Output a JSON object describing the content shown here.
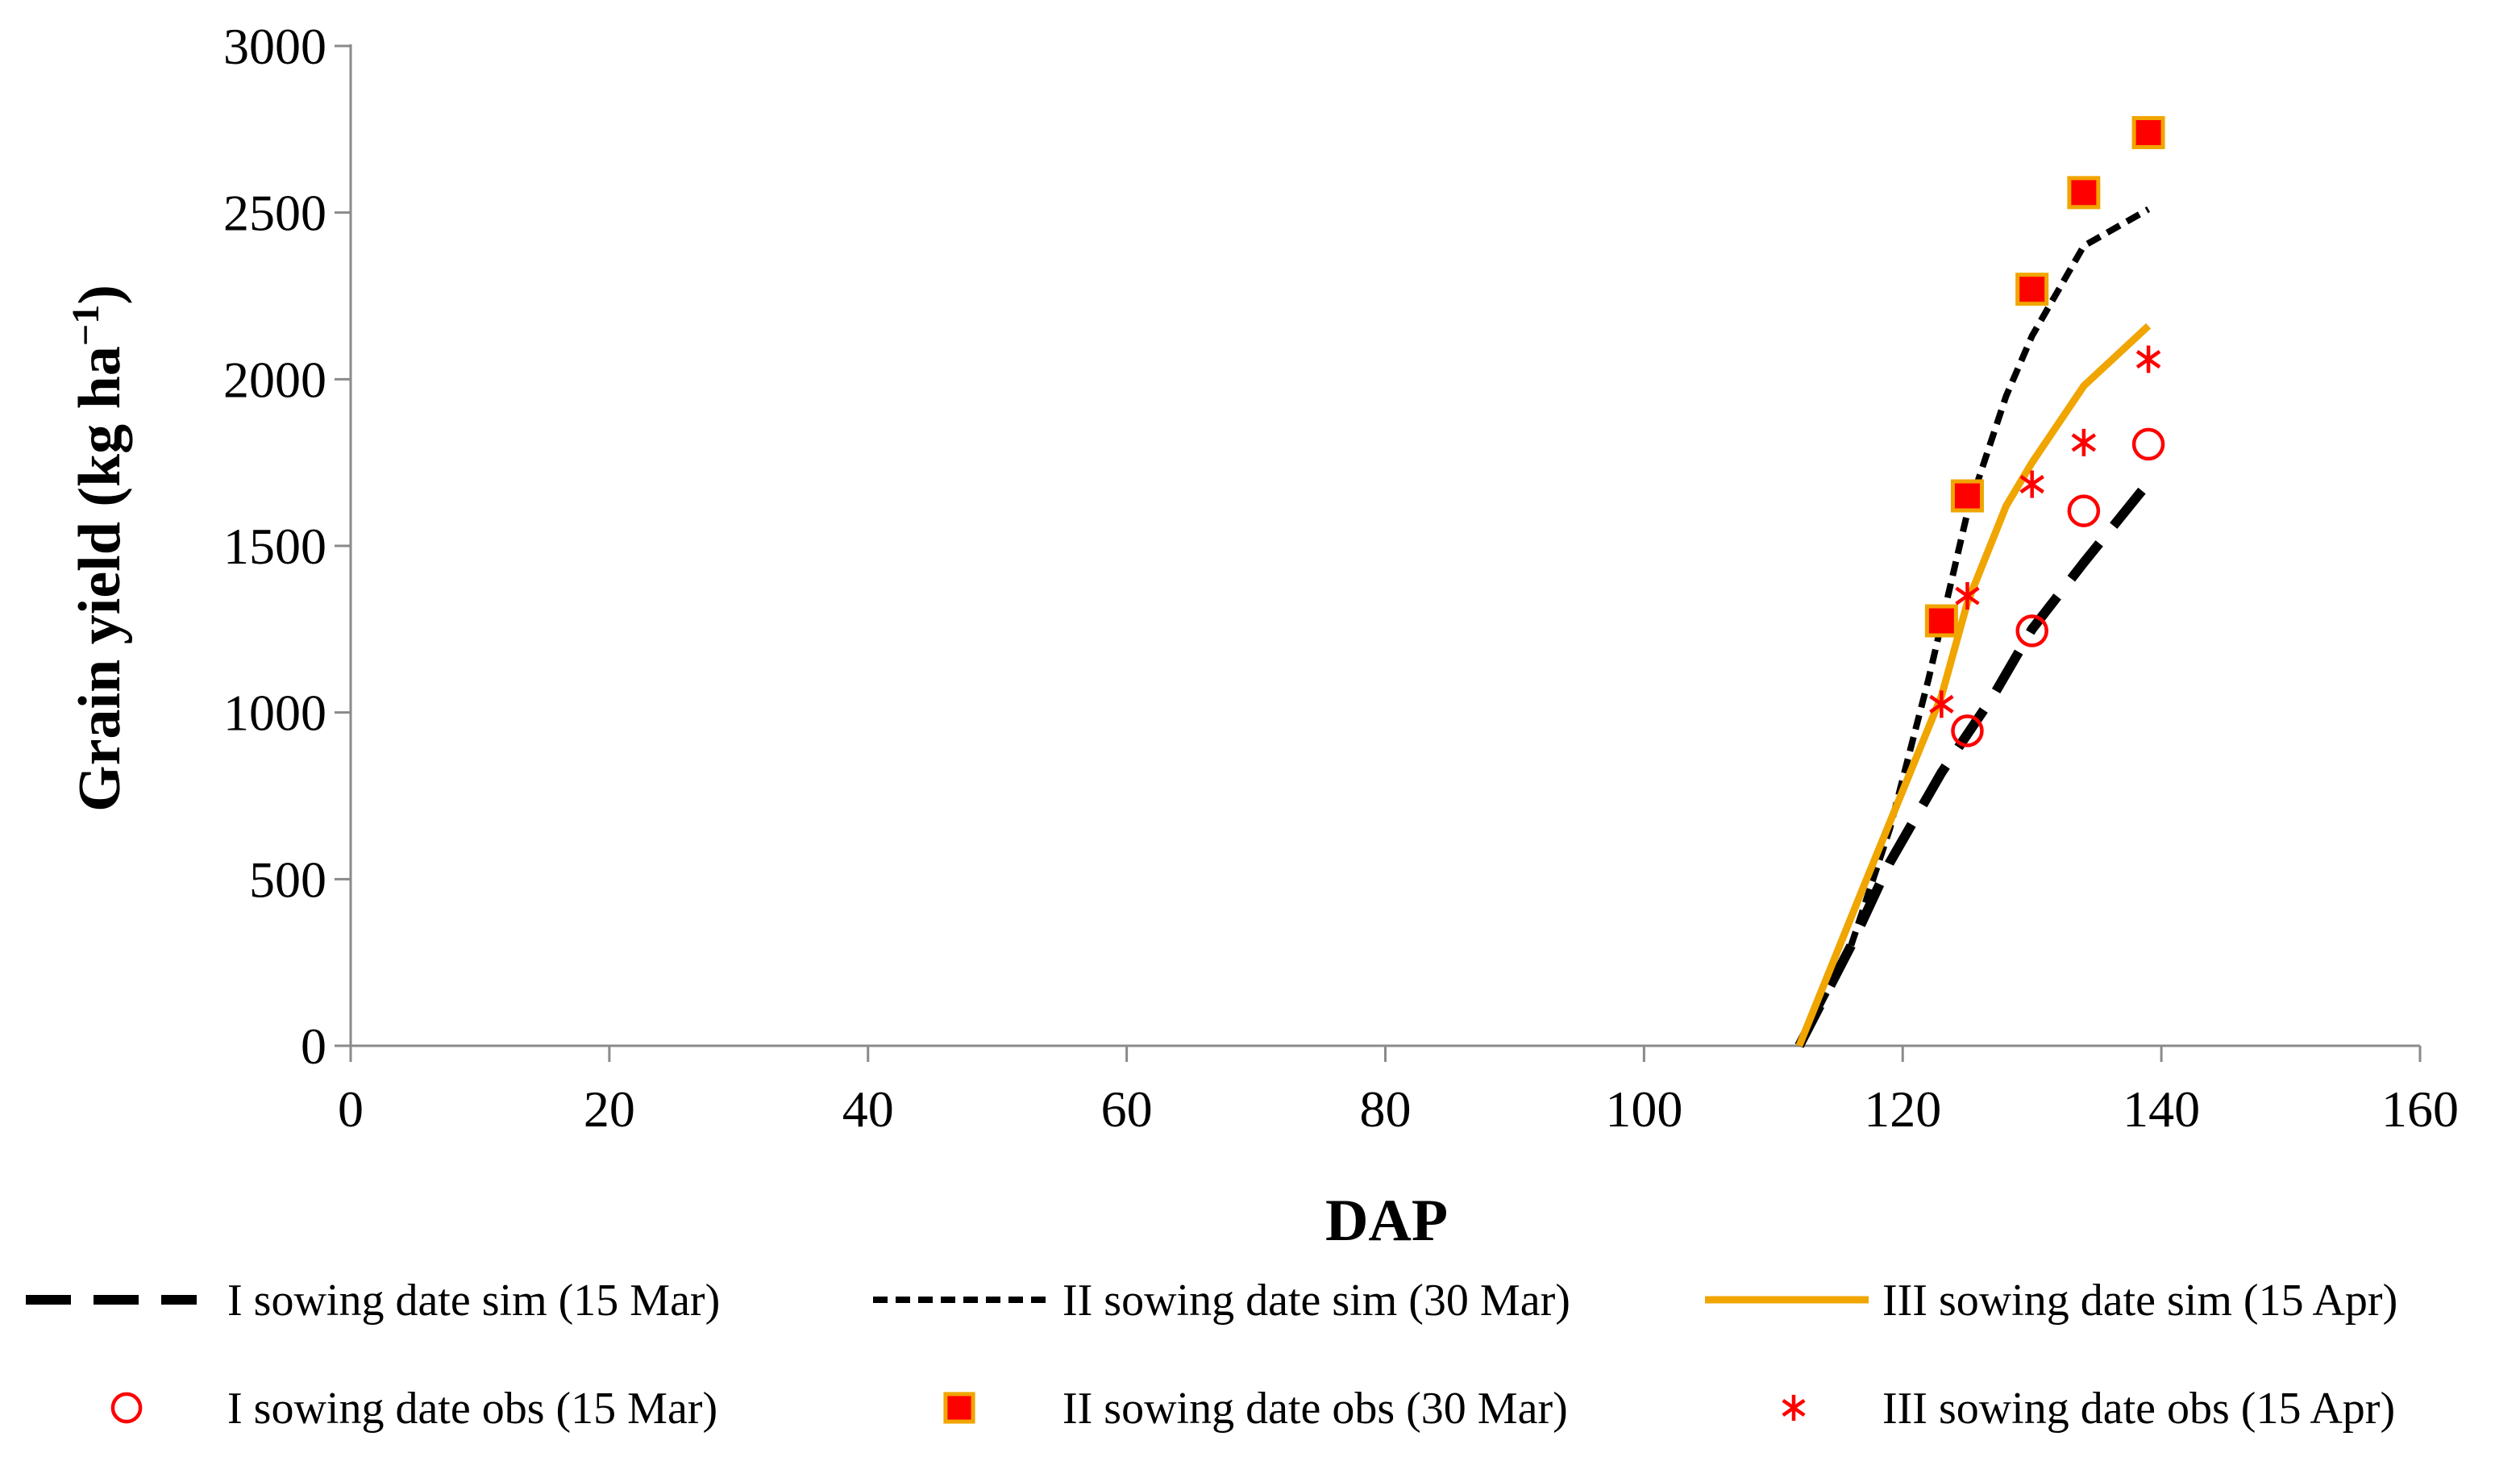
{
  "chart_data": {
    "type": "line",
    "title": "",
    "xlabel": "DAP",
    "ylabel": "Grain yield (kg ha",
    "ylabel_sup": "−1",
    "ylabel_close": ")",
    "xlim": [
      0,
      160
    ],
    "ylim": [
      0,
      3000
    ],
    "xticks": [
      0,
      20,
      40,
      60,
      80,
      100,
      120,
      140,
      160
    ],
    "yticks": [
      0,
      500,
      1000,
      1500,
      2000,
      2500,
      3000
    ],
    "grid": false,
    "legend_position": "bottom",
    "series": [
      {
        "name": "I sowing date sim (15 Mar)",
        "kind": "line",
        "style": "long-dash",
        "color": "#000000",
        "x": [
          112,
          116,
          119,
          123,
          127,
          130,
          134,
          139
        ],
        "y": [
          0,
          300,
          550,
          820,
          1050,
          1250,
          1450,
          1690
        ]
      },
      {
        "name": "II sowing date sim (30 Mar)",
        "kind": "line",
        "style": "short-dash",
        "color": "#000000",
        "x": [
          112,
          116,
          119,
          122,
          125,
          128,
          130,
          134,
          139
        ],
        "y": [
          0,
          300,
          650,
          1100,
          1600,
          1950,
          2130,
          2400,
          2510
        ]
      },
      {
        "name": "III sowing date sim (15 Apr)",
        "kind": "line",
        "style": "solid",
        "color": "#F0A500",
        "x": [
          112,
          117,
          123,
          125,
          128,
          130,
          134,
          139
        ],
        "y": [
          0,
          480,
          1050,
          1330,
          1620,
          1750,
          1980,
          2160
        ]
      },
      {
        "name": "I sowing date obs (15 Mar)",
        "kind": "scatter",
        "marker": "open-circle",
        "color": "#FF0000",
        "x": [
          125,
          130,
          134,
          139
        ],
        "y": [
          945,
          1245,
          1605,
          1805
        ]
      },
      {
        "name": "II sowing date obs (30 Mar)",
        "kind": "scatter",
        "marker": "square",
        "color": "#FF0000",
        "edge_color": "#F0A500",
        "x": [
          123,
          125,
          130,
          134,
          139
        ],
        "y": [
          1275,
          1650,
          2270,
          2560,
          2740
        ]
      },
      {
        "name": "III sowing date obs (15 Apr)",
        "kind": "scatter",
        "marker": "asterisk",
        "color": "#FF0000",
        "x": [
          123,
          125,
          130,
          134,
          139
        ],
        "y": [
          1025,
          1350,
          1685,
          1810,
          2060
        ]
      }
    ]
  }
}
